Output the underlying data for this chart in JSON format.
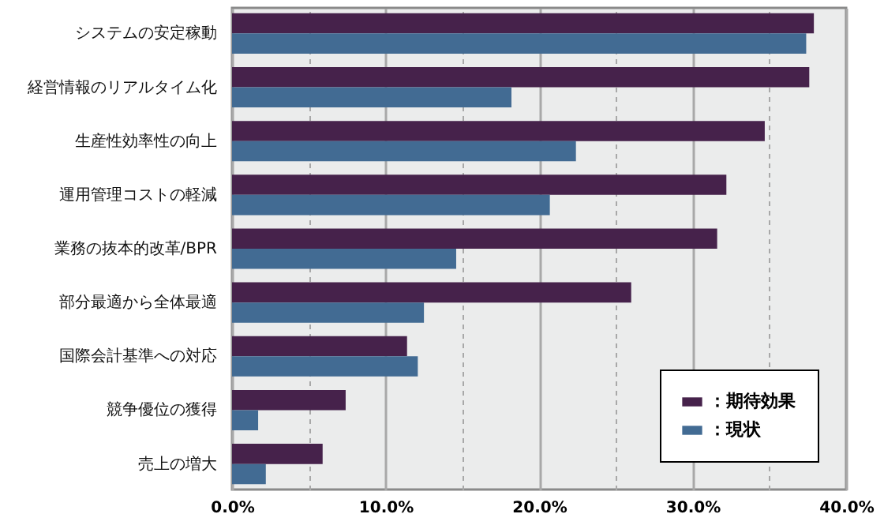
{
  "chart_data": {
    "type": "bar",
    "orientation": "horizontal",
    "categories": [
      "システムの安定稼動",
      "経営情報のリアルタイム化",
      "生産性効率性の向上",
      "運用管理コストの軽減",
      "業務の抜本的改革/BPR",
      "部分最適から全体最適",
      "国際会計基準への対応",
      "競争優位の獲得",
      "売上の増大"
    ],
    "series": [
      {
        "name": "：期待効果",
        "color": "#46224b",
        "values": [
          37.9,
          37.6,
          34.7,
          32.2,
          31.6,
          26.0,
          11.4,
          7.4,
          5.9
        ]
      },
      {
        "name": "：現状",
        "color": "#426b93",
        "values": [
          37.4,
          18.2,
          22.4,
          20.7,
          14.6,
          12.5,
          12.1,
          1.7,
          2.2
        ]
      }
    ],
    "xlim": [
      0,
      40
    ],
    "xticks": [
      {
        "value": 0,
        "label": "0.0%"
      },
      {
        "value": 5,
        "label": null
      },
      {
        "value": 10,
        "label": "10.0%"
      },
      {
        "value": 15,
        "label": null
      },
      {
        "value": 20,
        "label": "20.0%"
      },
      {
        "value": 25,
        "label": null
      },
      {
        "value": 30,
        "label": "30.0%"
      },
      {
        "value": 35,
        "label": null
      },
      {
        "value": 40,
        "label": "40.0%"
      }
    ],
    "grid": "x",
    "legend": "bottom right"
  }
}
